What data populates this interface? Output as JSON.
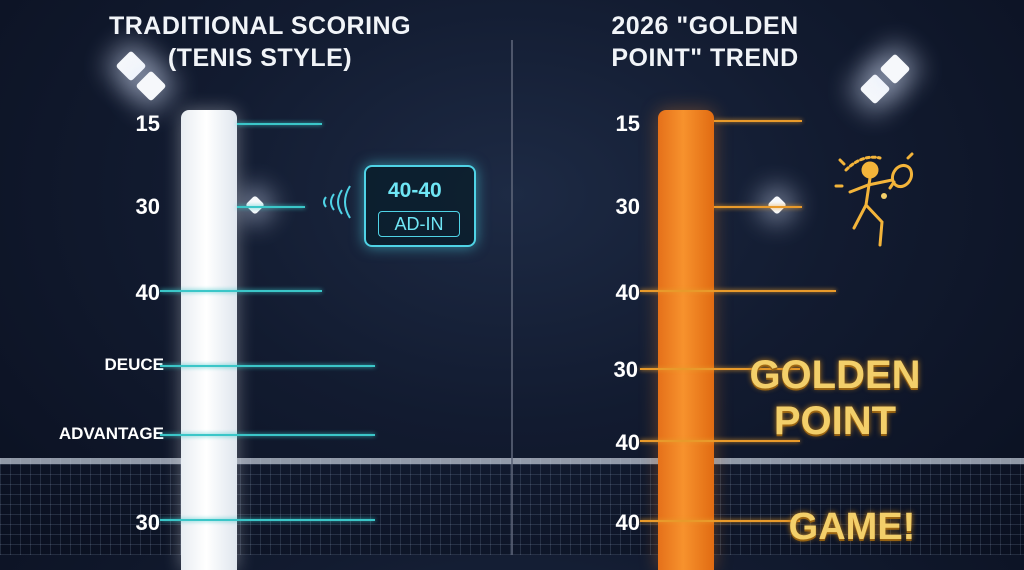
{
  "left": {
    "title": "TRADITIONAL SCORING\n(TENIS STYLE)",
    "scores": [
      "15",
      "30",
      "40",
      "DEUCE",
      "ADVANTAGE",
      "30"
    ],
    "scoreboard": {
      "main": "40-40",
      "sub": "AD-IN"
    }
  },
  "right": {
    "title": "2026 \"GOLDEN\nPOINT\" TREND",
    "scores": [
      "15",
      "30",
      "40",
      "30",
      "40",
      "40"
    ],
    "golden_label": "GOLDEN\nPOINT",
    "game_label": "GAME!"
  },
  "colors": {
    "teal": "#3bc6c8",
    "orange": "#f7922d",
    "gold": "#f3cf6a"
  },
  "icons": [
    "stadium-light-icon",
    "sound-waves-icon",
    "padel-player-icon"
  ]
}
